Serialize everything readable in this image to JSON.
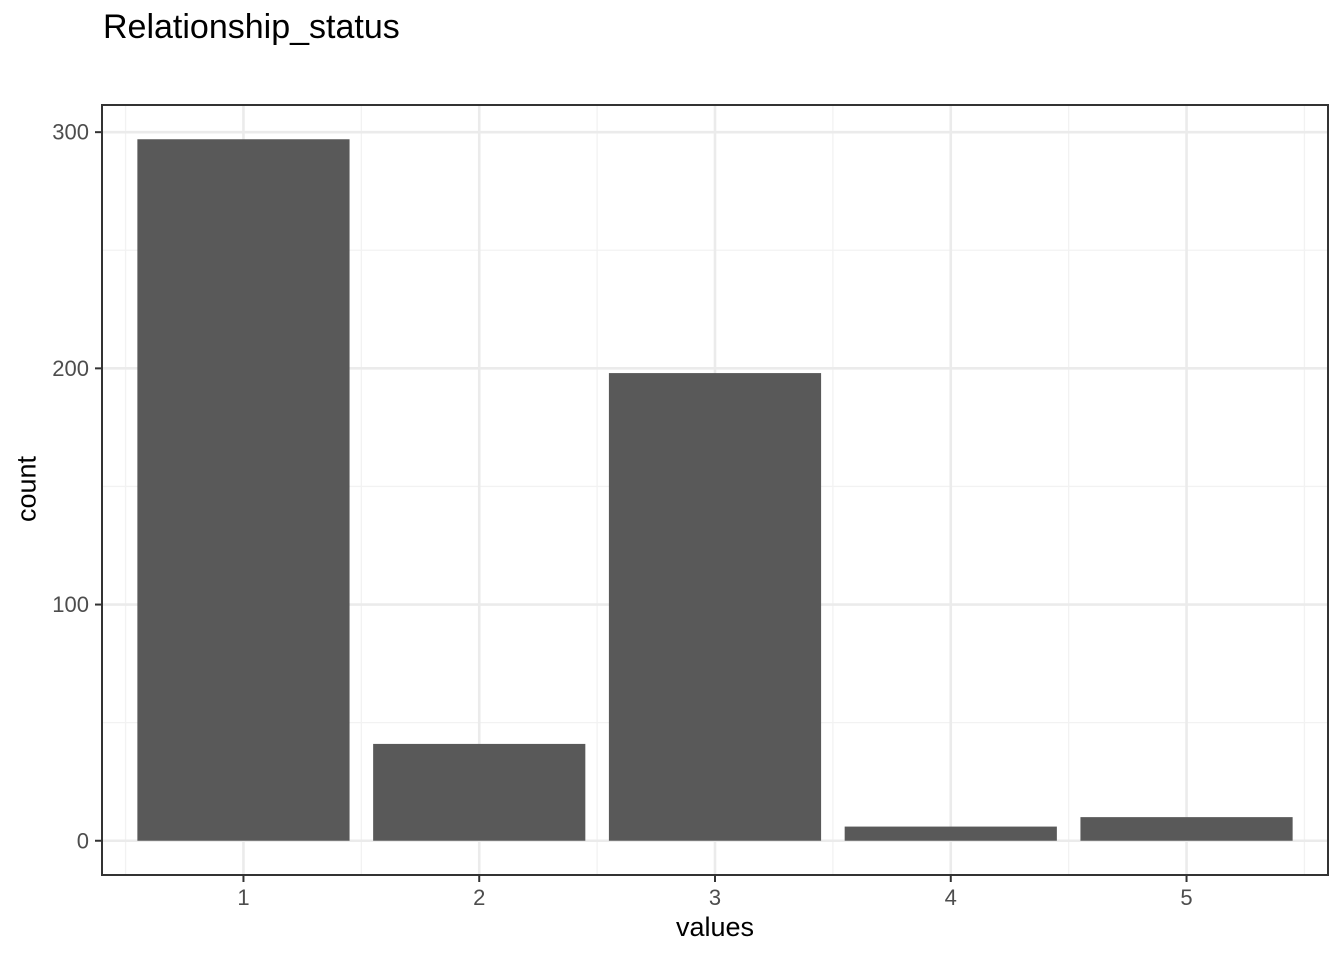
{
  "chart_data": {
    "type": "bar",
    "title": "Relationship_status",
    "xlabel": "values",
    "ylabel": "count",
    "categories": [
      "1",
      "2",
      "3",
      "4",
      "5"
    ],
    "values": [
      297,
      41,
      198,
      6,
      10
    ],
    "ylim": [
      -14.5,
      311.5
    ],
    "yticks": [
      0,
      100,
      200,
      300
    ],
    "ytick_labels": [
      "0",
      "100",
      "200",
      "300"
    ],
    "grid": true,
    "legend": "none",
    "colors": {
      "bar": "#595959",
      "grid_major": "#ebebeb",
      "grid_minor": "#f2f2f2",
      "panel_border": "#333333",
      "tick_text": "#4d4d4d"
    }
  }
}
